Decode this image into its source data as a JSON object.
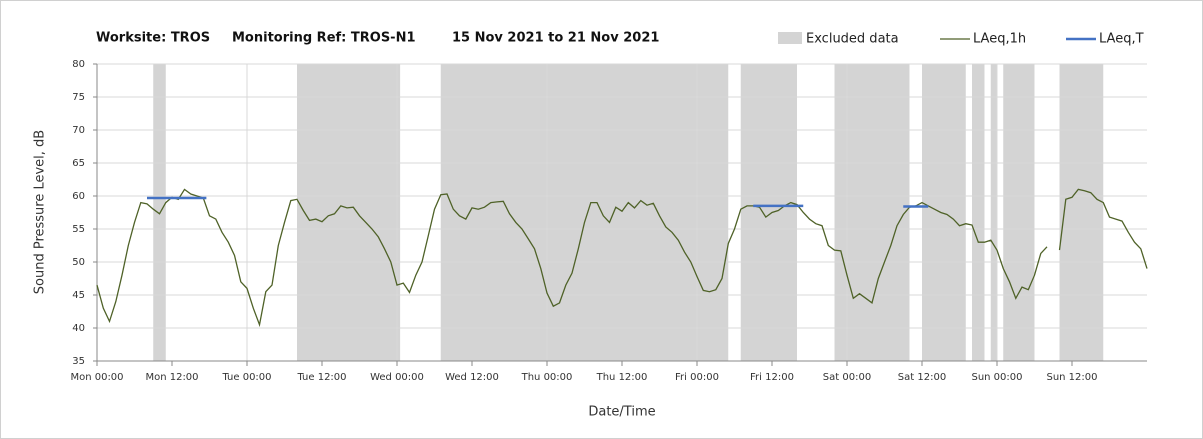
{
  "chart_data": {
    "type": "line",
    "title": [
      "Worksite: TROS",
      "Monitoring Ref: TROS-N1",
      "15 Nov 2021 to 21 Nov 2021"
    ],
    "xlabel": "Date/Time",
    "ylabel": "Sound Pressure Level, dB",
    "x": [
      0,
      1,
      2,
      3,
      4,
      5,
      6,
      7,
      8,
      9,
      10,
      11,
      12,
      13,
      14,
      15,
      16,
      17,
      18,
      19,
      20,
      21,
      22,
      23,
      24,
      25,
      26,
      27,
      28,
      29,
      30,
      31,
      32,
      33,
      34,
      35,
      36,
      37,
      38,
      39,
      40,
      41,
      42,
      43,
      44,
      45,
      46,
      47,
      48,
      49,
      50,
      51,
      52,
      53,
      54,
      55,
      56,
      57,
      58,
      59,
      60,
      61,
      62,
      63,
      64,
      65,
      66,
      67,
      68,
      69,
      70,
      71,
      72,
      73,
      74,
      75,
      76,
      77,
      78,
      79,
      80,
      81,
      82,
      83,
      84,
      85,
      86,
      87,
      88,
      89,
      90,
      91,
      92,
      93,
      94,
      95,
      96,
      97,
      98,
      99,
      100,
      101,
      102,
      103,
      104,
      105,
      106,
      107,
      108,
      109,
      110,
      111,
      112,
      113,
      114,
      115,
      116,
      117,
      118,
      119,
      120,
      121,
      122,
      123,
      124,
      125,
      126,
      127,
      128,
      129,
      130,
      131,
      132,
      133,
      134,
      135,
      136,
      137,
      138,
      139,
      140,
      141,
      142,
      143,
      144,
      145,
      146,
      147,
      148,
      149,
      150,
      151,
      152,
      153,
      154,
      155,
      156,
      157,
      158,
      159,
      160,
      161,
      162,
      163,
      164,
      165,
      166,
      167,
      168
    ],
    "series": [
      {
        "name": "LAeq,1h",
        "color": "#4f6228",
        "values": [
          46.5,
          43,
          41,
          44,
          48,
          52.5,
          56,
          59,
          58.8,
          58,
          57.3,
          59,
          59.8,
          59.5,
          61,
          60.3,
          60,
          59.7,
          57,
          56.5,
          54.5,
          53,
          51,
          47,
          46,
          43,
          40.5,
          45.5,
          46.5,
          52.5,
          56,
          59.3,
          59.5,
          57.8,
          56.3,
          56.5,
          56.1,
          57,
          57.3,
          58.5,
          58.2,
          58.3,
          57,
          56,
          55,
          53.8,
          52,
          50,
          46.5,
          46.8,
          45.4,
          48,
          50,
          54,
          58,
          60.2,
          60.3,
          58,
          57,
          56.5,
          58.2,
          58,
          58.3,
          59,
          59.1,
          59.2,
          57.3,
          56,
          55,
          53.5,
          52,
          49,
          45.3,
          43.3,
          43.8,
          46.5,
          48.3,
          52,
          56,
          59,
          59,
          57,
          56,
          58.3,
          57.7,
          59,
          58.2,
          59.3,
          58.6,
          58.9,
          57,
          55.3,
          54.5,
          53.3,
          51.5,
          50,
          47.8,
          45.7,
          45.5,
          45.8,
          47.5,
          52.8,
          55,
          58,
          58.5,
          58.5,
          58.3,
          56.8,
          57.5,
          57.8,
          58.5,
          59,
          58.7,
          57.5,
          56.5,
          55.8,
          55.5,
          52.5,
          51.8,
          51.7,
          48,
          44.5,
          45.2,
          44.5,
          43.8,
          47.5,
          50,
          52.5,
          55.5,
          57.2,
          58.3,
          58.5,
          59,
          58.5,
          58,
          57.5,
          57.2,
          56.5,
          55.5,
          55.8,
          55.6,
          53,
          53,
          53.3,
          51.8,
          49,
          47,
          44.5,
          46.2,
          45.8,
          48,
          51.3,
          52.3,
          null,
          51.8,
          59.5,
          59.8,
          61,
          60.8,
          60.5,
          59.5,
          59,
          56.8,
          56.5,
          56.2,
          54.5,
          53,
          52,
          49
        ]
      }
    ],
    "periods": {
      "name": "LAeq,T",
      "color": "#4472c4",
      "items": [
        {
          "start": 8,
          "end": 17.5,
          "value": 59.7
        },
        {
          "start": 105,
          "end": 113,
          "value": 58.5
        },
        {
          "start": 129,
          "end": 133,
          "value": 58.4
        }
      ]
    },
    "excluded": {
      "name": "Excluded data",
      "color": "#d4d4d4",
      "ranges": [
        [
          9,
          11
        ],
        [
          32,
          48.5
        ],
        [
          55,
          101
        ],
        [
          103,
          112
        ],
        [
          118,
          130
        ],
        [
          132,
          139
        ],
        [
          140,
          142
        ],
        [
          143,
          144
        ],
        [
          145,
          150
        ],
        [
          154,
          161
        ]
      ]
    },
    "xlim": [
      0,
      168
    ],
    "xticks": [
      {
        "value": 0,
        "label": "Mon 00:00"
      },
      {
        "value": 12,
        "label": "Mon 12:00"
      },
      {
        "value": 24,
        "label": "Tue 00:00"
      },
      {
        "value": 36,
        "label": "Tue 12:00"
      },
      {
        "value": 48,
        "label": "Wed 00:00"
      },
      {
        "value": 60,
        "label": "Wed 12:00"
      },
      {
        "value": 72,
        "label": "Thu 00:00"
      },
      {
        "value": 84,
        "label": "Thu 12:00"
      },
      {
        "value": 96,
        "label": "Fri 00:00"
      },
      {
        "value": 108,
        "label": "Fri 12:00"
      },
      {
        "value": 120,
        "label": "Sat 00:00"
      },
      {
        "value": 132,
        "label": "Sat 12:00"
      },
      {
        "value": 144,
        "label": "Sun 00:00"
      },
      {
        "value": 156,
        "label": "Sun 12:00"
      }
    ],
    "ylim": [
      35,
      80
    ],
    "yticks": [
      35,
      40,
      45,
      50,
      55,
      60,
      65,
      70,
      75,
      80
    ],
    "grid": true
  }
}
